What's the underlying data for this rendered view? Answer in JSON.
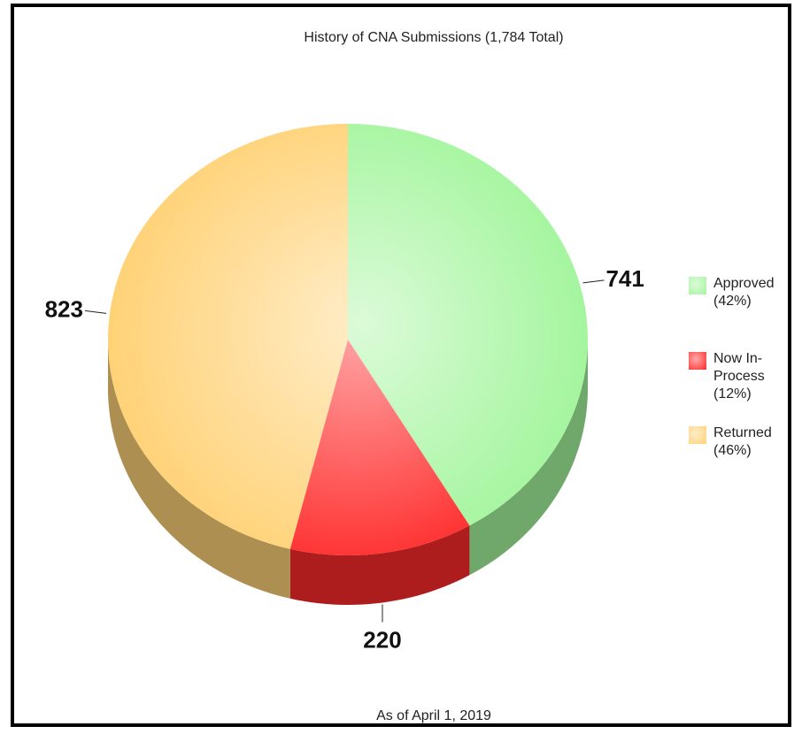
{
  "chart_data": {
    "type": "pie",
    "title": "History of CNA Submissions (1,784 Total)",
    "footnote": "As of April 1, 2019",
    "categories": [
      "Approved (42%)",
      "Now In-Process (12%)",
      "Returned (46%)"
    ],
    "values": [
      741,
      220,
      823
    ],
    "colors": [
      "#a4f59e",
      "#ff2a2a",
      "#ffd277"
    ],
    "legend": "right"
  }
}
